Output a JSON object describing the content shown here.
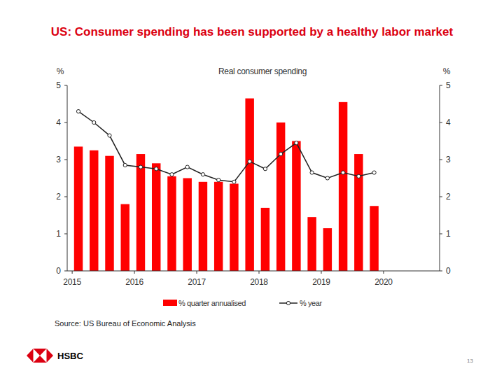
{
  "header": {
    "title": "US: Consumer spending has been supported by a healthy labor market"
  },
  "chart_data": {
    "type": "bar",
    "title": "Real consumer spending",
    "y_label": "%",
    "y2_label": "%",
    "x": [
      2015.1,
      2015.35,
      2015.6,
      2015.85,
      2016.1,
      2016.35,
      2016.6,
      2016.85,
      2017.1,
      2017.35,
      2017.6,
      2017.85,
      2018.1,
      2018.35,
      2018.6,
      2018.85,
      2019.1,
      2019.35,
      2019.6,
      2019.85
    ],
    "xlim": [
      2014.92,
      2020.9
    ],
    "xticks": [
      2015,
      2016,
      2017,
      2018,
      2019,
      2020
    ],
    "ylim": [
      0,
      5
    ],
    "yticks": [
      0,
      1,
      2,
      3,
      4,
      5
    ],
    "y2lim": [
      0,
      5
    ],
    "y2ticks": [
      0,
      1,
      2,
      3,
      4,
      5
    ],
    "grid": false,
    "legend": "bottom",
    "series": [
      {
        "name": "% quarter annualised",
        "type": "bar",
        "color": "#ff0000",
        "values": [
          3.35,
          3.25,
          3.1,
          1.8,
          3.15,
          2.9,
          2.55,
          2.5,
          2.4,
          2.4,
          2.35,
          4.65,
          1.7,
          4.0,
          3.5,
          1.45,
          1.15,
          4.55,
          3.15,
          1.75
        ]
      },
      {
        "name": "% year",
        "type": "line",
        "axis": "y2",
        "color": "#222222",
        "marker": "circle",
        "line_style": "solid",
        "values": [
          4.3,
          4.0,
          3.65,
          2.85,
          2.8,
          2.75,
          2.6,
          2.8,
          2.6,
          2.45,
          2.4,
          2.95,
          2.75,
          3.15,
          3.45,
          2.65,
          2.5,
          2.65,
          2.55,
          2.65
        ]
      }
    ]
  },
  "footer": {
    "source": "Source: US Bureau of Economic Analysis",
    "logo": "HSBC",
    "page": "13"
  }
}
